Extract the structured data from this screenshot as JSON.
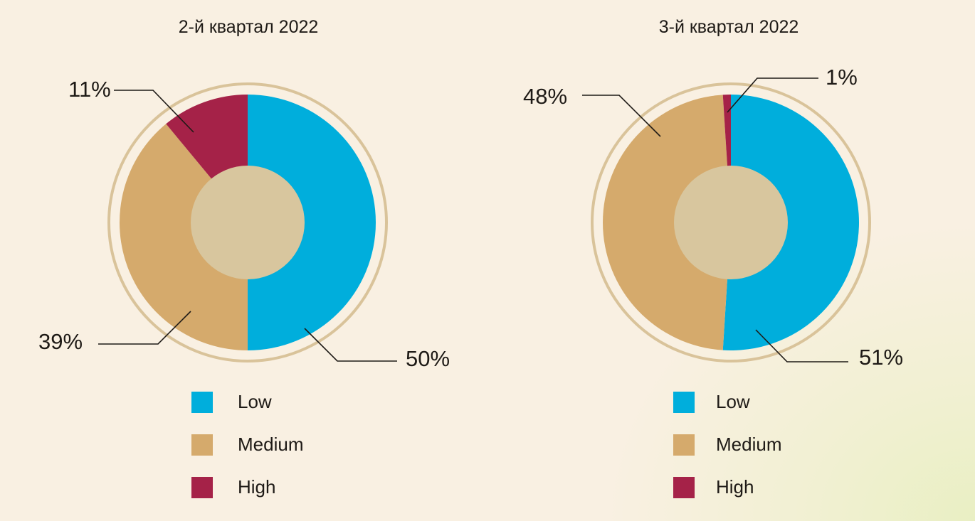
{
  "colors": {
    "Low": "#00aedc",
    "Medium": "#d5aa6c",
    "High": "#a52248",
    "hole": "#d8c69e",
    "ring": "#d9c39a",
    "background": "#f9f0e2"
  },
  "chart_data": [
    {
      "type": "donut",
      "title": "2-й квартал 2022",
      "categories": [
        "Low",
        "Medium",
        "High"
      ],
      "values": [
        50,
        39,
        11
      ],
      "labels": [
        "50%",
        "39%",
        "11%"
      ]
    },
    {
      "type": "donut",
      "title": "3-й квартал 2022",
      "categories": [
        "Low",
        "Medium",
        "High"
      ],
      "values": [
        51,
        48,
        1
      ],
      "labels": [
        "51%",
        "48%",
        "1%"
      ]
    }
  ]
}
